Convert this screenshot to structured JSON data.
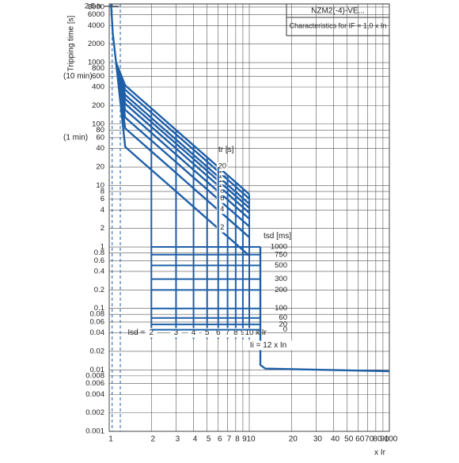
{
  "chart_data": {
    "type": "line",
    "log_x": true,
    "log_y": true,
    "grid": true,
    "color": "#1f5fa8",
    "xlim": [
      1,
      100
    ],
    "ylim": [
      0.001,
      9000
    ],
    "xticks": [
      1,
      2,
      3,
      4,
      5,
      6,
      7,
      8,
      9,
      10,
      20,
      30,
      40,
      50,
      60,
      70,
      80,
      90,
      100
    ],
    "yticks": [
      0.001,
      0.002,
      0.004,
      0.006,
      0.008,
      0.01,
      0.02,
      0.04,
      0.06,
      0.08,
      0.1,
      0.2,
      0.4,
      0.6,
      0.8,
      1,
      2,
      4,
      6,
      8,
      10,
      20,
      40,
      60,
      80,
      100,
      200,
      400,
      600,
      800,
      1000,
      2000,
      4000,
      6000,
      8000,
      {
        "value": 9000,
        "label": "2.5 h"
      }
    ],
    "y_annotations": [
      {
        "text": "(10 min)",
        "y": 600
      },
      {
        "text": "(1 min)",
        "y": 60
      }
    ],
    "y_label": "Tripping time [s]",
    "x_label": "x Ir",
    "legend_title": "NZM2(-4)-VE...",
    "legend_subtitle": "Characteristics for IF = 1,0 x In",
    "dashed_x": [
      1.05,
      1.2
    ],
    "pickup": {
      "x": [
        1.03,
        1.06,
        1.12
      ],
      "values": [
        9000,
        3000,
        1000
      ]
    },
    "tr_curves": {
      "label": "tr [s]",
      "tr": [
        2,
        4,
        6,
        8,
        10,
        12,
        14,
        17,
        20
      ],
      "x": [
        1.12,
        1.3,
        1.6,
        2,
        3,
        4,
        5,
        6,
        8,
        10
      ],
      "values": [
        [
          1000,
          42.6,
          28.1,
          18,
          8,
          4.5,
          2.88,
          2,
          1.13,
          0.72
        ],
        [
          1000,
          85.2,
          56.3,
          36,
          16,
          9,
          5.76,
          4,
          2.25,
          1.44
        ],
        [
          1000,
          128,
          84.4,
          54,
          24,
          13.5,
          8.64,
          6,
          3.38,
          2.16
        ],
        [
          1000,
          170,
          113,
          72,
          32,
          18,
          11.5,
          8,
          4.5,
          2.88
        ],
        [
          1000,
          213,
          141,
          90,
          40,
          22.5,
          14.4,
          10,
          5.63,
          3.6
        ],
        [
          1000,
          256,
          169,
          108,
          48,
          27,
          17.3,
          12,
          6.75,
          4.32
        ],
        [
          1000,
          298,
          197,
          126,
          56,
          31.5,
          20.2,
          14,
          7.88,
          5.04
        ],
        [
          1000,
          362,
          239,
          153,
          68,
          38.3,
          24.5,
          17,
          9.56,
          6.12
        ],
        [
          1000,
          426,
          281,
          180,
          80,
          45,
          28.8,
          20,
          11.3,
          7.2
        ]
      ]
    },
    "isd": {
      "label": "Isd =",
      "values": [
        2,
        3,
        4,
        5,
        6,
        7,
        8,
        9,
        10
      ],
      "unit": "x Ir",
      "y": 0.04,
      "bottom": 0.032
    },
    "tsd": {
      "label": "tsd [ms]",
      "labels": [
        1000,
        750,
        500,
        300,
        200,
        100,
        60,
        20,
        0
      ],
      "values": [
        1,
        0.75,
        0.5,
        0.3,
        0.2,
        0.1,
        0.07,
        0.055,
        0.045
      ],
      "x_end": 12
    },
    "ii_label": "Ii = 12 x In",
    "instantaneous": {
      "x": [
        12,
        12,
        13,
        100
      ],
      "values": [
        1,
        0.012,
        0.0105,
        0.0095
      ]
    }
  }
}
